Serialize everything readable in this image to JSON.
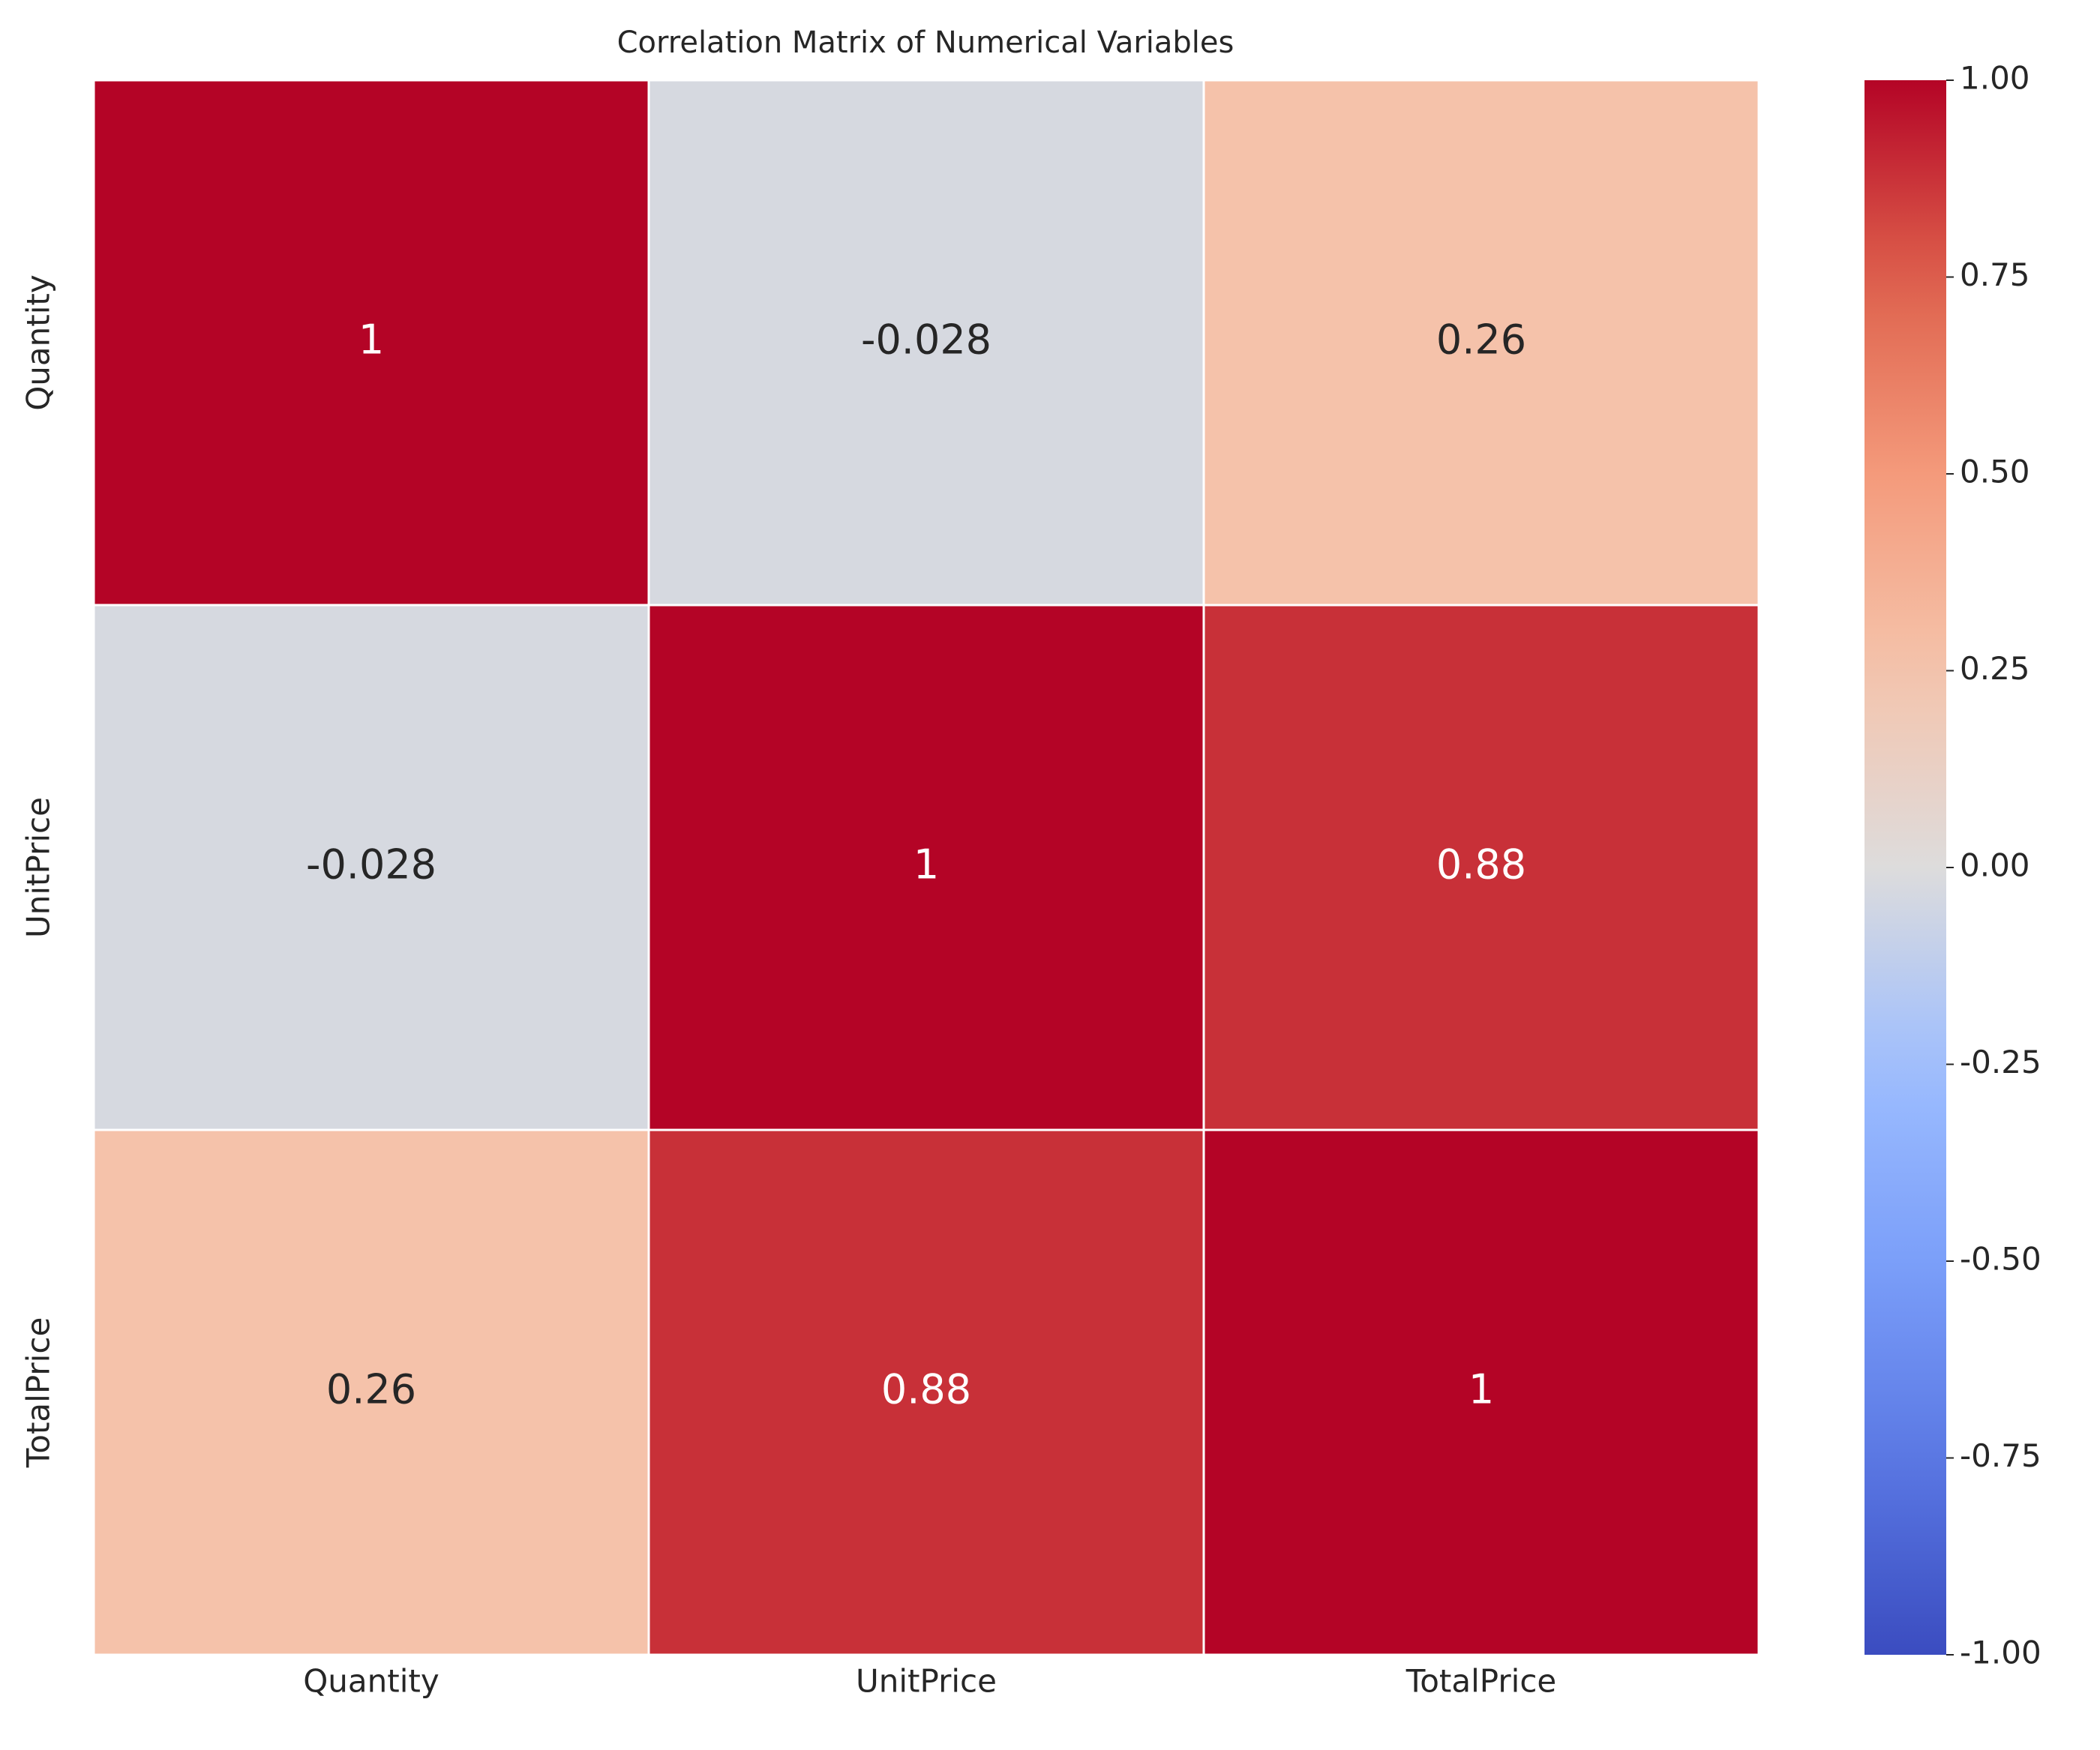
{
  "chart_data": {
    "type": "heatmap",
    "title": "Correlation Matrix of Numerical Variables",
    "x_categories": [
      "Quantity",
      "UnitPrice",
      "TotalPrice"
    ],
    "y_categories": [
      "Quantity",
      "UnitPrice",
      "TotalPrice"
    ],
    "values": [
      [
        1,
        -0.028,
        0.26
      ],
      [
        -0.028,
        1,
        0.88
      ],
      [
        0.26,
        0.88,
        1
      ]
    ],
    "colormap": "coolwarm",
    "colorbar_lim": [
      -1,
      1
    ],
    "colorbar_ticks": [
      {
        "value": -1,
        "label": "-1.00"
      },
      {
        "value": -0.75,
        "label": "-0.75"
      },
      {
        "value": -0.5,
        "label": "-0.50"
      },
      {
        "value": -0.25,
        "label": "-0.25"
      },
      {
        "value": 0,
        "label": "0.00"
      },
      {
        "value": 0.25,
        "label": "0.25"
      },
      {
        "value": 0.5,
        "label": "0.50"
      },
      {
        "value": 0.75,
        "label": "0.75"
      },
      {
        "value": 1,
        "label": "1.00"
      }
    ]
  }
}
